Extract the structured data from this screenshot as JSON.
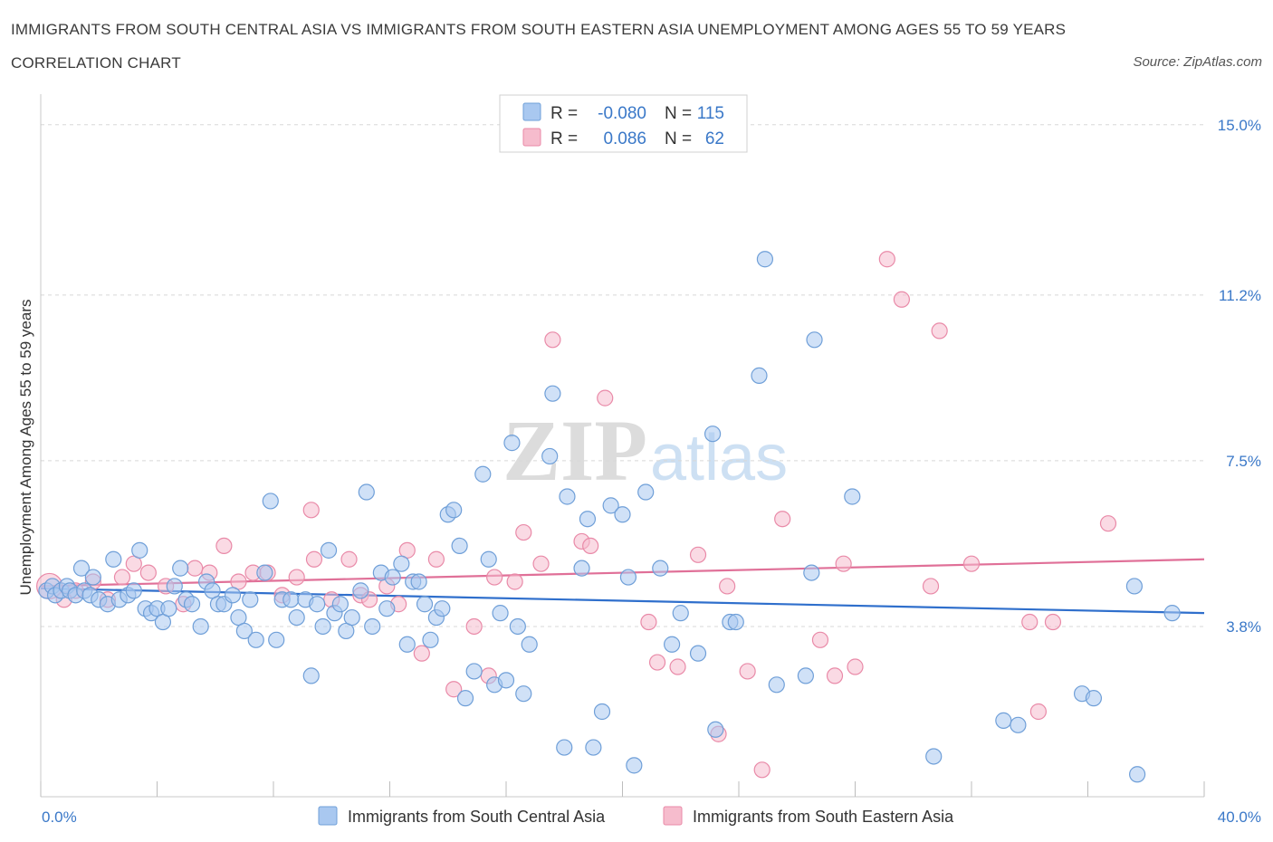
{
  "title": "IMMIGRANTS FROM SOUTH CENTRAL ASIA VS IMMIGRANTS FROM SOUTH EASTERN ASIA UNEMPLOYMENT AMONG AGES 55 TO 59 YEARS CORRELATION CHART",
  "source": "Source: ZipAtlas.com",
  "watermark": {
    "zip": "ZIP",
    "atlas": "atlas"
  },
  "legend": {
    "r_label": "R =",
    "n_label": "N =",
    "entries": [
      {
        "r": "-0.080",
        "n": "115",
        "color": "#a9c8f0"
      },
      {
        "r": "0.086",
        "n": "62",
        "color": "#f6bccd"
      }
    ]
  },
  "colors": {
    "blue_fill": "#a9c8f0",
    "blue_stroke": "#6f9fd8",
    "blue_line": "#2f6fcc",
    "pink_fill": "#f6bccd",
    "pink_stroke": "#e98aa8",
    "pink_line": "#e07098",
    "tick_text": "#3a78c8",
    "grid": "#d8d8d8"
  },
  "chart_data": {
    "type": "scatter",
    "xlabel": "",
    "ylabel": "Unemployment Among Ages 55 to 59 years",
    "xlim": [
      0,
      40
    ],
    "ylim": [
      0,
      15.4
    ],
    "x_tick_labels": [
      {
        "value": 0,
        "label": "0.0%"
      },
      {
        "value": 40,
        "label": "40.0%"
      }
    ],
    "y_tick_labels": [
      {
        "value": 3.8,
        "label": "3.8%"
      },
      {
        "value": 7.5,
        "label": "7.5%"
      },
      {
        "value": 11.2,
        "label": "11.2%"
      },
      {
        "value": 15.0,
        "label": "15.0%"
      }
    ],
    "grid": true,
    "series": [
      {
        "name": "Immigrants from South Central Asia",
        "color": "#a9c8f0",
        "trend": {
          "x": [
            0,
            40
          ],
          "y": [
            4.65,
            4.1
          ]
        },
        "points": [
          [
            0.2,
            4.6
          ],
          [
            0.4,
            4.7
          ],
          [
            0.5,
            4.5
          ],
          [
            0.7,
            4.6
          ],
          [
            0.9,
            4.7
          ],
          [
            1.0,
            4.6
          ],
          [
            1.2,
            4.5
          ],
          [
            1.4,
            5.1
          ],
          [
            1.5,
            4.6
          ],
          [
            1.7,
            4.5
          ],
          [
            1.8,
            4.9
          ],
          [
            2.0,
            4.4
          ],
          [
            2.3,
            4.3
          ],
          [
            2.5,
            5.3
          ],
          [
            2.7,
            4.4
          ],
          [
            3.0,
            4.5
          ],
          [
            3.2,
            4.6
          ],
          [
            3.4,
            5.5
          ],
          [
            3.6,
            4.2
          ],
          [
            3.8,
            4.1
          ],
          [
            4.0,
            4.2
          ],
          [
            4.2,
            3.9
          ],
          [
            4.4,
            4.2
          ],
          [
            4.6,
            4.7
          ],
          [
            4.8,
            5.1
          ],
          [
            5.0,
            4.4
          ],
          [
            5.2,
            4.3
          ],
          [
            5.5,
            3.8
          ],
          [
            5.7,
            4.8
          ],
          [
            5.9,
            4.6
          ],
          [
            6.1,
            4.3
          ],
          [
            6.3,
            4.3
          ],
          [
            6.6,
            4.5
          ],
          [
            6.8,
            4.0
          ],
          [
            7.0,
            3.7
          ],
          [
            7.2,
            4.4
          ],
          [
            7.4,
            3.5
          ],
          [
            7.7,
            5.0
          ],
          [
            7.9,
            6.6
          ],
          [
            8.1,
            3.5
          ],
          [
            8.3,
            4.4
          ],
          [
            8.6,
            4.4
          ],
          [
            8.8,
            4.0
          ],
          [
            9.1,
            4.4
          ],
          [
            9.3,
            2.7
          ],
          [
            9.5,
            4.3
          ],
          [
            9.7,
            3.8
          ],
          [
            9.9,
            5.5
          ],
          [
            10.1,
            4.1
          ],
          [
            10.3,
            4.3
          ],
          [
            10.5,
            3.7
          ],
          [
            10.7,
            4.0
          ],
          [
            11.0,
            4.6
          ],
          [
            11.2,
            6.8
          ],
          [
            11.4,
            3.8
          ],
          [
            11.7,
            5.0
          ],
          [
            11.9,
            4.2
          ],
          [
            12.1,
            4.9
          ],
          [
            12.4,
            5.2
          ],
          [
            12.6,
            3.4
          ],
          [
            12.8,
            4.8
          ],
          [
            13.0,
            4.8
          ],
          [
            13.2,
            4.3
          ],
          [
            13.4,
            3.5
          ],
          [
            13.6,
            4.0
          ],
          [
            13.8,
            4.2
          ],
          [
            14.0,
            6.3
          ],
          [
            14.2,
            6.4
          ],
          [
            14.4,
            5.6
          ],
          [
            14.6,
            2.2
          ],
          [
            14.9,
            2.8
          ],
          [
            15.2,
            7.2
          ],
          [
            15.4,
            5.3
          ],
          [
            15.6,
            2.5
          ],
          [
            15.8,
            4.1
          ],
          [
            16.0,
            2.6
          ],
          [
            16.2,
            7.9
          ],
          [
            16.4,
            3.8
          ],
          [
            16.6,
            2.3
          ],
          [
            16.8,
            3.4
          ],
          [
            17.5,
            7.6
          ],
          [
            17.6,
            9.0
          ],
          [
            18.0,
            1.1
          ],
          [
            18.1,
            6.7
          ],
          [
            18.6,
            5.1
          ],
          [
            18.8,
            6.2
          ],
          [
            19.0,
            1.1
          ],
          [
            19.3,
            1.9
          ],
          [
            19.6,
            6.5
          ],
          [
            20.0,
            6.3
          ],
          [
            20.2,
            4.9
          ],
          [
            20.4,
            0.7
          ],
          [
            20.8,
            6.8
          ],
          [
            21.3,
            5.1
          ],
          [
            21.7,
            3.4
          ],
          [
            22.0,
            4.1
          ],
          [
            22.6,
            3.2
          ],
          [
            23.1,
            8.1
          ],
          [
            23.2,
            1.5
          ],
          [
            23.7,
            3.9
          ],
          [
            23.9,
            3.9
          ],
          [
            24.7,
            9.4
          ],
          [
            24.9,
            12.0
          ],
          [
            25.3,
            2.5
          ],
          [
            26.3,
            2.7
          ],
          [
            26.5,
            5.0
          ],
          [
            26.6,
            10.2
          ],
          [
            27.9,
            6.7
          ],
          [
            30.7,
            0.9
          ],
          [
            33.1,
            1.7
          ],
          [
            33.6,
            1.6
          ],
          [
            35.8,
            2.3
          ],
          [
            36.2,
            2.2
          ],
          [
            37.6,
            4.7
          ],
          [
            37.7,
            0.5
          ],
          [
            38.9,
            4.1
          ]
        ]
      },
      {
        "name": "Immigrants from South Eastern Asia",
        "color": "#f6bccd",
        "trend": {
          "x": [
            0,
            40
          ],
          "y": [
            4.7,
            5.3
          ]
        },
        "points": [
          [
            0.3,
            4.7
          ],
          [
            0.8,
            4.4
          ],
          [
            1.2,
            4.6
          ],
          [
            1.8,
            4.8
          ],
          [
            2.3,
            4.4
          ],
          [
            2.8,
            4.9
          ],
          [
            3.2,
            5.2
          ],
          [
            3.7,
            5.0
          ],
          [
            4.3,
            4.7
          ],
          [
            4.9,
            4.3
          ],
          [
            5.3,
            5.1
          ],
          [
            5.8,
            5.0
          ],
          [
            6.3,
            5.6
          ],
          [
            6.8,
            4.8
          ],
          [
            7.3,
            5.0
          ],
          [
            7.8,
            5.0
          ],
          [
            8.3,
            4.5
          ],
          [
            8.8,
            4.9
          ],
          [
            9.4,
            5.3
          ],
          [
            9.3,
            6.4
          ],
          [
            10.0,
            4.4
          ],
          [
            10.6,
            5.3
          ],
          [
            11.0,
            4.5
          ],
          [
            11.3,
            4.4
          ],
          [
            11.9,
            4.7
          ],
          [
            12.3,
            4.3
          ],
          [
            12.6,
            5.5
          ],
          [
            13.1,
            3.2
          ],
          [
            13.6,
            5.3
          ],
          [
            14.2,
            2.4
          ],
          [
            14.9,
            3.8
          ],
          [
            15.4,
            2.7
          ],
          [
            15.6,
            4.9
          ],
          [
            16.3,
            4.8
          ],
          [
            16.6,
            5.9
          ],
          [
            17.2,
            5.2
          ],
          [
            17.6,
            10.2
          ],
          [
            18.6,
            5.7
          ],
          [
            18.9,
            5.6
          ],
          [
            19.4,
            8.9
          ],
          [
            20.9,
            3.9
          ],
          [
            21.2,
            3.0
          ],
          [
            21.9,
            2.9
          ],
          [
            22.6,
            5.4
          ],
          [
            23.6,
            4.7
          ],
          [
            23.3,
            1.4
          ],
          [
            24.3,
            2.8
          ],
          [
            24.8,
            0.6
          ],
          [
            25.5,
            6.2
          ],
          [
            26.8,
            3.5
          ],
          [
            27.3,
            2.7
          ],
          [
            27.6,
            5.2
          ],
          [
            28.0,
            2.9
          ],
          [
            29.1,
            12.0
          ],
          [
            29.6,
            11.1
          ],
          [
            30.6,
            4.7
          ],
          [
            30.9,
            10.4
          ],
          [
            32.0,
            5.2
          ],
          [
            34.0,
            3.9
          ],
          [
            34.3,
            1.9
          ],
          [
            34.8,
            3.9
          ],
          [
            36.7,
            6.1
          ]
        ]
      }
    ]
  },
  "bottom_legend": [
    {
      "label": "Immigrants from South Central Asia",
      "color": "#a9c8f0"
    },
    {
      "label": "Immigrants from South Eastern Asia",
      "color": "#f6bccd"
    }
  ]
}
